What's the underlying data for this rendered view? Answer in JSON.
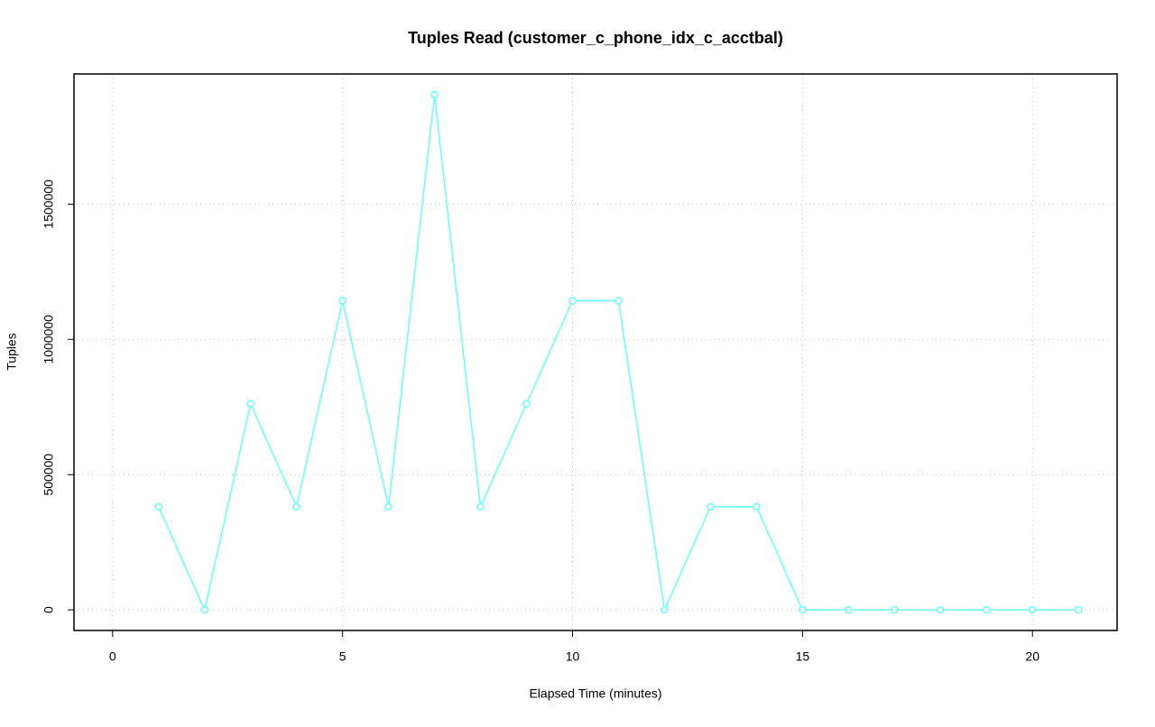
{
  "chart_data": {
    "type": "line",
    "title": "Tuples Read (customer_c_phone_idx_c_acctbal)",
    "x_label": "Elapsed Time (minutes)",
    "y_label": "Tuples",
    "x": [
      1,
      2,
      3,
      4,
      5,
      6,
      7,
      8,
      9,
      10,
      11,
      12,
      13,
      14,
      15,
      16,
      17,
      18,
      19,
      20,
      21
    ],
    "series": [
      {
        "name": "Tuples",
        "color": "#66ffff",
        "values": [
          381000,
          0,
          762000,
          381000,
          1143000,
          381000,
          1905000,
          381000,
          762000,
          1143000,
          1143000,
          0,
          381000,
          381000,
          0,
          0,
          0,
          0,
          0,
          0,
          0
        ]
      }
    ],
    "xlim": [
      -0.84,
      21.84
    ],
    "xticks": [
      0,
      5,
      10,
      15,
      20
    ],
    "ylim": [
      -76200,
      1981200
    ],
    "yticks": [
      0,
      500000,
      1000000,
      1500000
    ],
    "grid": true,
    "legend": false
  }
}
